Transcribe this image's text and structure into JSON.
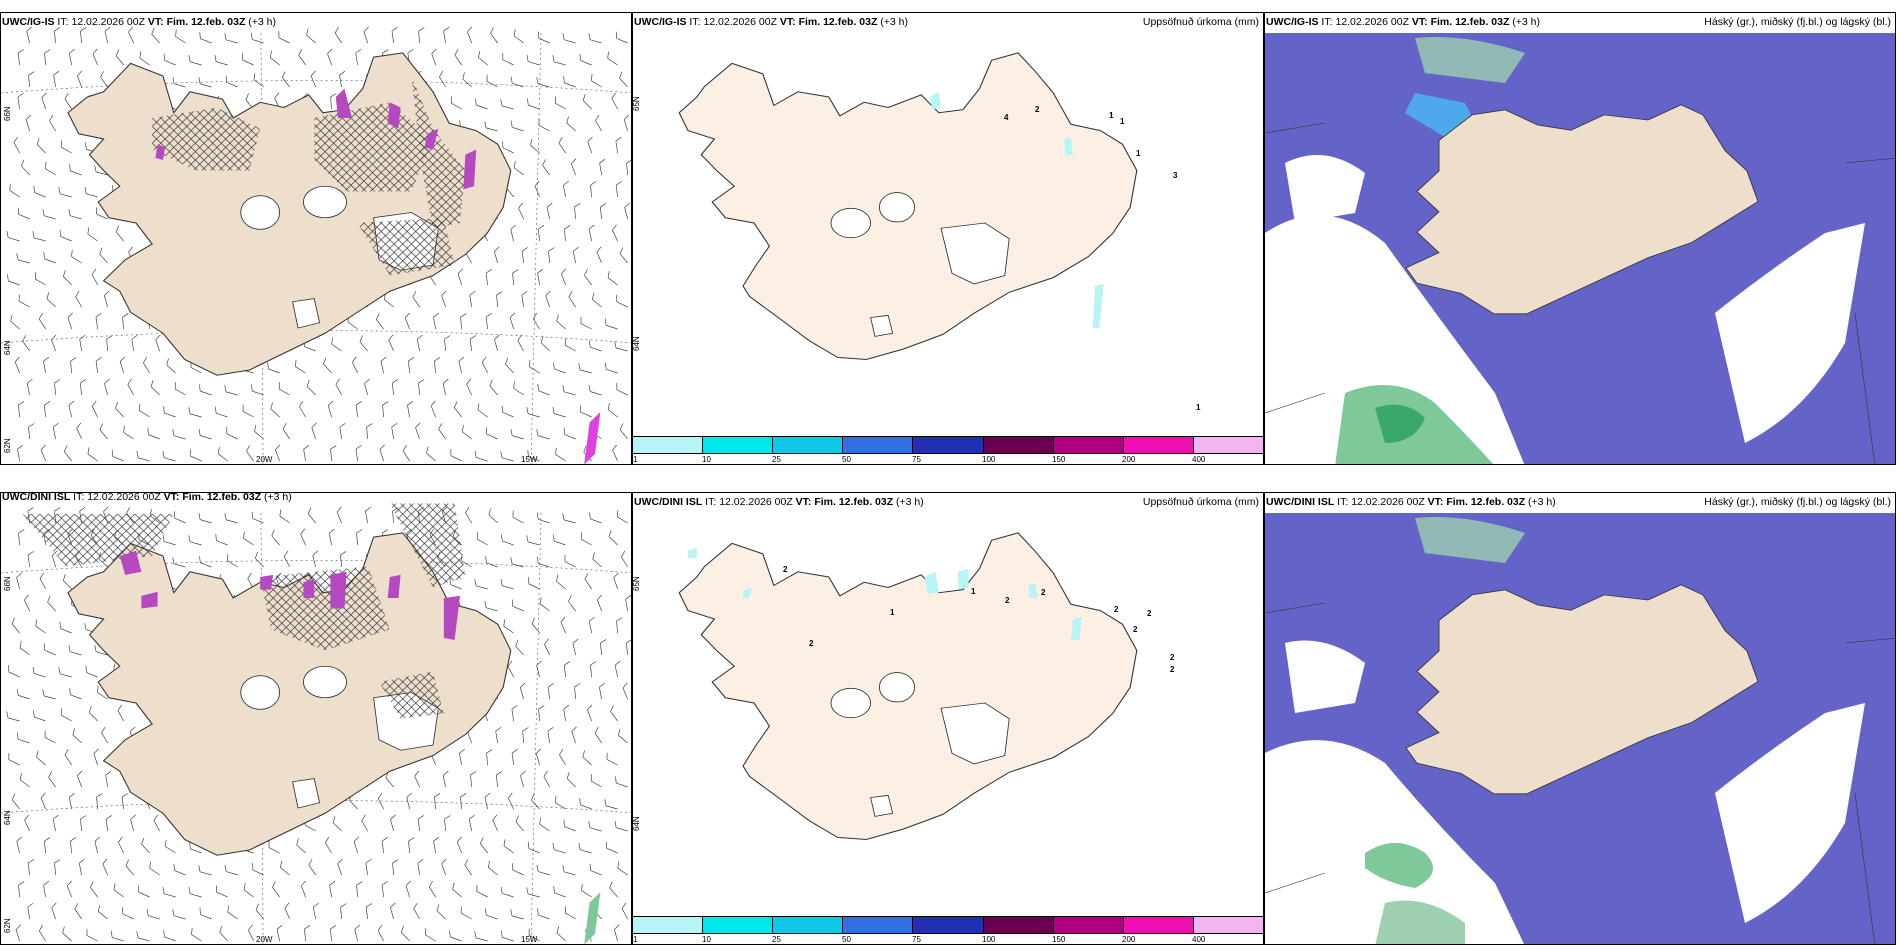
{
  "rows": [
    {
      "wind": {
        "model": "UWC/IG-IS",
        "it_label": "IT:",
        "it_value": "12.02.2026 00Z",
        "vt_label": "VT:",
        "vt_value": "Fim. 12.feb. 03Z",
        "lead": "(+3 h)",
        "lat_labels": [
          "66N",
          "64N",
          "62N"
        ],
        "lon_labels": [
          "20W",
          "15W"
        ]
      },
      "precip": {
        "model": "UWC/IG-IS",
        "it_label": "IT:",
        "it_value": "12.02.2026 00Z",
        "vt_label": "VT:",
        "vt_value": "Fim. 12.feb. 03Z",
        "lead": "(+3 h)",
        "title_right": "Uppsöfnuð úrkoma (mm)",
        "lat_labels": [
          "65N",
          "64N"
        ],
        "values": [
          "4",
          "2",
          "1",
          "1",
          "1",
          "3",
          "1"
        ]
      },
      "cloud": {
        "model": "UWC/IG-IS",
        "it_label": "IT:",
        "it_value": "12.02.2026 00Z",
        "vt_label": "VT:",
        "vt_value": "Fim. 12.feb. 03Z",
        "lead": "(+3 h)",
        "title_right": "Háský (gr.), miðský (fj.bl.) og lágský (bl.)"
      }
    },
    {
      "wind": {
        "model": "UWC/DINI ISL",
        "it_label": "IT:",
        "it_value": "12.02.2026 00Z",
        "vt_label": "VT:",
        "vt_value": "Fim. 12.feb. 03Z",
        "lead": "(+3 h)",
        "lat_labels": [
          "66N",
          "64N",
          "62N"
        ],
        "lon_labels": [
          "20W",
          "15W"
        ]
      },
      "precip": {
        "model": "UWC/DINI ISL",
        "it_label": "IT:",
        "it_value": "12.02.2026 00Z",
        "vt_label": "VT:",
        "vt_value": "Fim. 12.feb. 03Z",
        "lead": "(+3 h)",
        "title_right": "Uppsöfnuð úrkoma (mm)",
        "lat_labels": [
          "65N",
          "64N"
        ],
        "values": [
          "1",
          "2",
          "1",
          "2",
          "2",
          "2",
          "2",
          "2",
          "2",
          "2",
          "2"
        ]
      },
      "cloud": {
        "model": "UWC/DINI ISL",
        "it_label": "IT:",
        "it_value": "12.02.2026 00Z",
        "vt_label": "VT:",
        "vt_value": "Fim. 12.feb. 03Z",
        "lead": "(+3 h)",
        "title_right": "Háský (gr.), miðský (fj.bl.) og lágský (bl.)"
      }
    }
  ],
  "colorbar": {
    "ticks": [
      "1",
      "10",
      "25",
      "50",
      "75",
      "100",
      "150",
      "200",
      "400"
    ],
    "colors": [
      "#b8f4f4",
      "#00e8e8",
      "#10c8e8",
      "#3070e0",
      "#2030b0",
      "#6a0050",
      "#b00080",
      "#f010b0",
      "#f4b4f0"
    ]
  },
  "colors": {
    "land_wind": "#eedfcd",
    "land_precip": "#fcf0e4",
    "cloud_mid": "#6464c8",
    "cloud_low": "#50a8ec",
    "cloud_high": "#7ec89a"
  }
}
